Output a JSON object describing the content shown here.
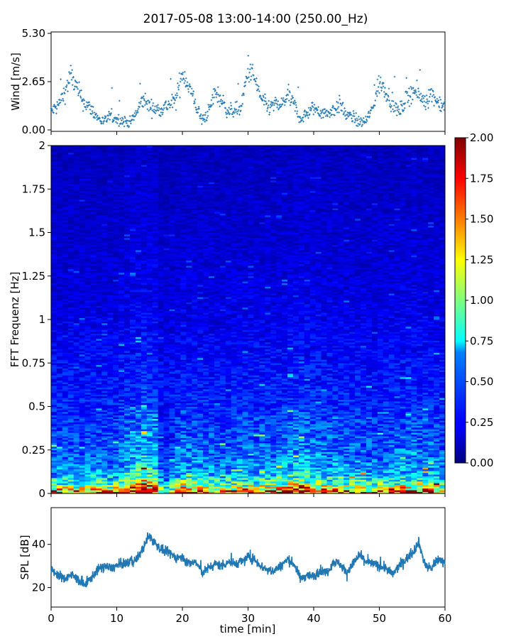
{
  "chart_data": [
    {
      "type": "scatter",
      "title": "2017-05-08 13:00-14:00 (250.00_Hz)",
      "ylabel": "Wind [m/s]",
      "xlim": [
        0,
        60
      ],
      "ylim": [
        0,
        5.3
      ],
      "yticks": [
        "0.00",
        "2.65",
        "5.30"
      ],
      "color": "#1f77b4",
      "marker": "+",
      "series": [
        {
          "x": [
            0,
            1,
            2,
            3,
            4,
            5,
            6,
            7,
            8,
            9,
            10,
            11,
            12,
            13,
            14,
            15,
            16,
            17,
            18,
            19,
            20,
            21,
            22,
            23,
            24,
            25,
            26,
            27,
            28,
            29,
            30,
            31,
            32,
            33,
            34,
            35,
            36,
            37,
            38,
            39,
            40,
            41,
            42,
            43,
            44,
            45,
            46,
            47,
            48,
            49,
            50,
            51,
            52,
            53,
            54,
            55,
            56,
            57,
            58,
            59,
            60
          ],
          "y": [
            1.0,
            1.3,
            2.0,
            3.0,
            2.2,
            1.5,
            1.2,
            0.7,
            0.4,
            0.8,
            0.6,
            0.5,
            0.4,
            0.9,
            1.7,
            1.3,
            1.1,
            1.2,
            1.4,
            1.6,
            3.2,
            2.4,
            1.4,
            0.5,
            1.0,
            2.1,
            1.6,
            1.0,
            1.1,
            1.2,
            3.4,
            2.8,
            1.7,
            1.2,
            1.4,
            1.3,
            1.9,
            1.4,
            0.6,
            0.9,
            1.2,
            1.0,
            0.9,
            1.1,
            1.4,
            0.8,
            0.7,
            0.4,
            0.5,
            1.2,
            2.6,
            2.2,
            1.4,
            1.0,
            1.6,
            2.2,
            1.9,
            1.6,
            2.0,
            1.5,
            1.3
          ]
        }
      ]
    },
    {
      "type": "heatmap",
      "ylabel": "FFT Frequenz [Hz]",
      "xlim": [
        0,
        60
      ],
      "ylim": [
        0,
        2
      ],
      "yticks": [
        "0",
        "0.25",
        "0.5",
        "0.75",
        "1",
        "1.25",
        "1.5",
        "1.75",
        "2"
      ],
      "colormap": "jet",
      "colorbar": {
        "min": 0,
        "max": 2,
        "ticks": [
          "0.00",
          "0.25",
          "0.50",
          "0.75",
          "1.00",
          "1.25",
          "1.50",
          "1.75",
          "2.00"
        ]
      },
      "profile": {
        "freq": [
          0,
          0.05,
          0.1,
          0.2,
          0.3,
          0.5,
          0.75,
          1.0,
          1.5,
          2.0
        ],
        "typical_value": [
          1.6,
          0.9,
          0.6,
          0.45,
          0.38,
          0.3,
          0.25,
          0.2,
          0.15,
          0.12
        ]
      },
      "activity_over_time": {
        "x": [
          0,
          5,
          10,
          14,
          16,
          17,
          20,
          25,
          30,
          35,
          38,
          40,
          45,
          50,
          55,
          60
        ],
        "y": [
          1.0,
          1.0,
          1.0,
          1.6,
          1.4,
          0.6,
          1.2,
          1.0,
          1.1,
          1.1,
          1.4,
          1.2,
          1.1,
          1.0,
          1.2,
          1.0
        ]
      }
    },
    {
      "type": "line",
      "ylabel": "SPL [dB]",
      "xlabel": "time [min]",
      "xlim": [
        0,
        60
      ],
      "ylim": [
        11,
        57
      ],
      "yticks": [
        "20",
        "40"
      ],
      "xticks": [
        "0",
        "10",
        "20",
        "30",
        "40",
        "50",
        "60"
      ],
      "color": "#1f77b4",
      "series": [
        {
          "x": [
            0,
            1,
            2,
            3,
            4,
            5,
            6,
            7,
            8,
            9,
            10,
            11,
            12,
            13,
            14,
            15,
            16,
            17,
            18,
            19,
            20,
            21,
            22,
            23,
            24,
            25,
            26,
            27,
            28,
            29,
            30,
            31,
            32,
            33,
            34,
            35,
            36,
            37,
            38,
            39,
            40,
            41,
            42,
            43,
            44,
            45,
            46,
            47,
            48,
            49,
            50,
            51,
            52,
            53,
            54,
            55,
            56,
            57,
            58,
            59,
            60
          ],
          "y": [
            28,
            26,
            24,
            26,
            24,
            21,
            24,
            28,
            30,
            29,
            30,
            31,
            32,
            33,
            38,
            44,
            40,
            37,
            36,
            34,
            34,
            31,
            32,
            27,
            29,
            31,
            30,
            32,
            31,
            32,
            34,
            33,
            30,
            28,
            28,
            30,
            33,
            31,
            24,
            26,
            25,
            28,
            27,
            32,
            31,
            27,
            31,
            35,
            32,
            31,
            30,
            29,
            26,
            30,
            33,
            36,
            41,
            30,
            29,
            33,
            32
          ]
        }
      ]
    }
  ]
}
